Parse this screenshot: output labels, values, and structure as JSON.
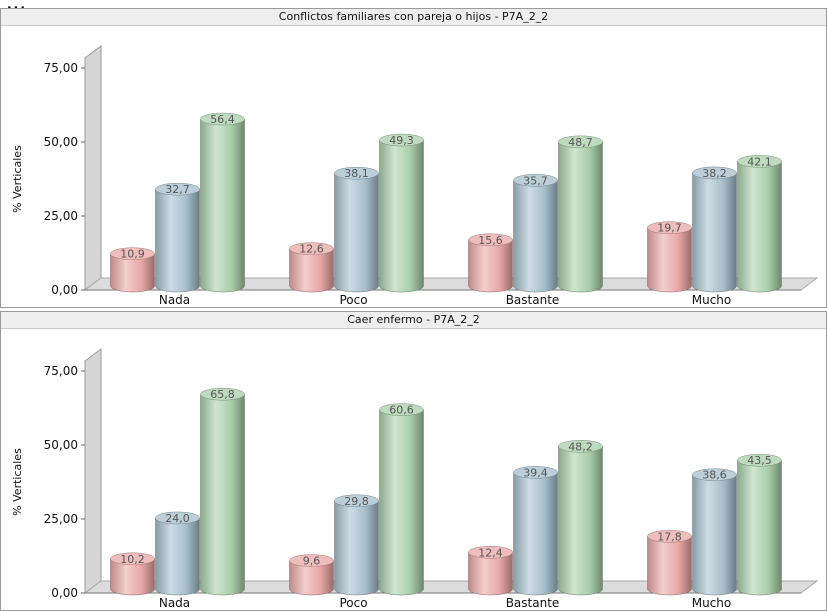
{
  "header_text": "...",
  "colors": {
    "series": [
      "#e8a8a6",
      "#a6bfcc",
      "#a9cfa9"
    ],
    "floor": "#dcdcdc",
    "wall_shadow": "#b0b0b0"
  },
  "chart_data": [
    {
      "type": "bar",
      "title": "Conflictos familiares con pareja o hijos - P7A_2_2",
      "ylabel": "% Verticales",
      "ylim": [
        0,
        75
      ],
      "yticks": [
        "0,00",
        "25,00",
        "50,00",
        "75,00"
      ],
      "categories": [
        "Nada",
        "Poco",
        "Bastante",
        "Mucho"
      ],
      "series": [
        {
          "values": [
            10.9,
            12.6,
            15.6,
            19.7
          ],
          "labels": [
            "10,9",
            "12,6",
            "15,6",
            "19,7"
          ]
        },
        {
          "values": [
            32.7,
            38.1,
            35.7,
            38.2
          ],
          "labels": [
            "32,7",
            "38,1",
            "35,7",
            "38,2"
          ]
        },
        {
          "values": [
            56.4,
            49.3,
            48.7,
            42.1
          ],
          "labels": [
            "56,4",
            "49,3",
            "48,7",
            "42,1"
          ]
        }
      ]
    },
    {
      "type": "bar",
      "title": "Caer enfermo - P7A_2_2",
      "ylabel": "% Verticales",
      "ylim": [
        0,
        75
      ],
      "yticks": [
        "0,00",
        "25,00",
        "50,00",
        "75,00"
      ],
      "categories": [
        "Nada",
        "Poco",
        "Bastante",
        "Mucho"
      ],
      "series": [
        {
          "values": [
            10.2,
            9.6,
            12.4,
            17.8
          ],
          "labels": [
            "10,2",
            "9,6",
            "12,4",
            "17,8"
          ]
        },
        {
          "values": [
            24.0,
            29.8,
            39.4,
            38.6
          ],
          "labels": [
            "24,0",
            "29,8",
            "39,4",
            "38,6"
          ]
        },
        {
          "values": [
            65.8,
            60.6,
            48.2,
            43.5
          ],
          "labels": [
            "65,8",
            "60,6",
            "48,2",
            "43,5"
          ]
        }
      ]
    }
  ]
}
